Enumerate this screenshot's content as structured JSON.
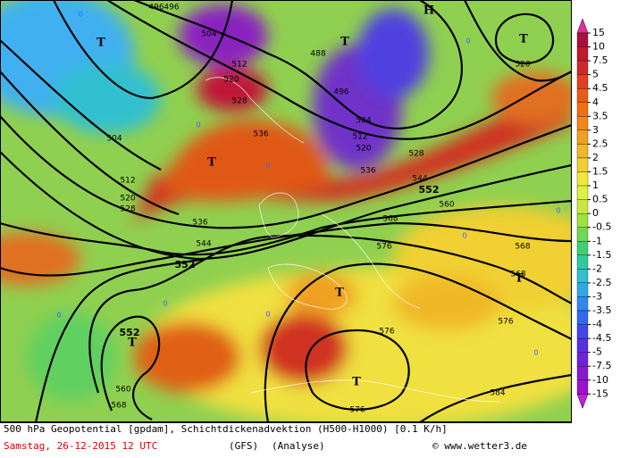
{
  "map": {
    "contour_labels": [
      "496",
      "496",
      "504",
      "488",
      "512",
      "520",
      "528",
      "536",
      "496",
      "504",
      "512",
      "520",
      "528",
      "536",
      "544",
      "552",
      "560",
      "568",
      "576",
      "568",
      "568",
      "576",
      "576",
      "576",
      "584",
      "520",
      "504",
      "512",
      "520",
      "528",
      "536",
      "544",
      "552",
      "552",
      "560",
      "568"
    ],
    "centers": [
      "T",
      "T",
      "T",
      "T",
      "T",
      "T",
      "T",
      "T",
      "H"
    ],
    "zero_labels": [
      "0",
      "0",
      "0",
      "0",
      "0",
      "0",
      "0",
      "0",
      "0",
      "0"
    ]
  },
  "legend": {
    "ticks": [
      15,
      10,
      7.5,
      5,
      4.5,
      4,
      3.5,
      3,
      2.5,
      2,
      1.5,
      1,
      0.5,
      0,
      -0.5,
      -1,
      -1.5,
      -2,
      -2.5,
      -3,
      -3.5,
      -4,
      -4.5,
      -5,
      -7.5,
      -10,
      -15
    ],
    "colors": [
      "#a8103c",
      "#c0182c",
      "#d02828",
      "#e04020",
      "#e85a18",
      "#f07010",
      "#f08818",
      "#f0a020",
      "#f0b828",
      "#f0d030",
      "#f0e838",
      "#e0f040",
      "#c8e840",
      "#a0e040",
      "#70d850",
      "#40d070",
      "#30c8a0",
      "#30c0d0",
      "#30a8e8",
      "#3088f0",
      "#3068f0",
      "#4048e8",
      "#5830e0",
      "#7020d8",
      "#8818d0",
      "#a010c8"
    ],
    "top_color": "#e0309a",
    "bottom_color": "#c020e0"
  },
  "footer": {
    "description": "500 hPa Geopotential [gpdam], Schichtdickenadvektion (H500-H1000) [0.1 K/h]",
    "date": "Samstag, 26-12-2015  12 UTC",
    "model": "(GFS)",
    "run": "(Analyse)",
    "source": "© www.wetter3.de"
  }
}
